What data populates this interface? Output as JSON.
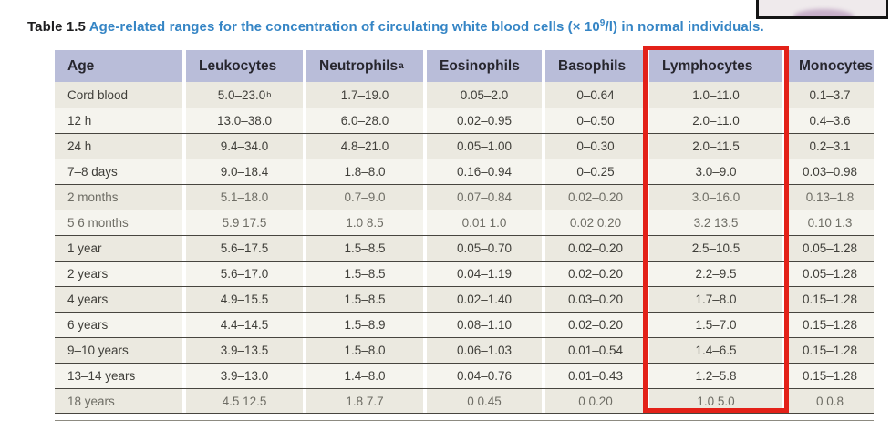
{
  "title": {
    "label": "Table 1.5",
    "text_pre": "Age-related ranges for the concentration of circulating white blood cells (× 10",
    "sup": "9",
    "text_post": "/l) in normal individuals."
  },
  "colors": {
    "header_bg": "#b9bdd9",
    "row_dark": "#ebe9e0",
    "row_light": "#f5f4ee",
    "title_blue": "#3585c5",
    "highlight_red": "#e32119"
  },
  "highlight": {
    "target_column": "Lymphocytes"
  },
  "partial_image_box": {
    "description": "black-bordered image thumbnail cut off at top edge"
  },
  "table": {
    "columns": [
      {
        "label": "Age",
        "sup": ""
      },
      {
        "label": "Leukocytes",
        "sup": ""
      },
      {
        "label": "Neutrophils",
        "sup": "a"
      },
      {
        "label": "Eosinophils",
        "sup": ""
      },
      {
        "label": "Basophils",
        "sup": ""
      },
      {
        "label": "Lymphocytes",
        "sup": ""
      },
      {
        "label": "Monocytes",
        "sup": ""
      }
    ],
    "rows": [
      {
        "age": "Cord blood",
        "values": [
          "5.0–23.0",
          "1.7–19.0",
          "0.05–2.0",
          "0–0.64",
          "1.0–11.0",
          "0.1–3.7"
        ],
        "value_sup": {
          "0": "b"
        }
      },
      {
        "age": "12 h",
        "values": [
          "13.0–38.0",
          "6.0–28.0",
          "0.02–0.95",
          "0–0.50",
          "2.0–11.0",
          "0.4–3.6"
        ]
      },
      {
        "age": "24 h",
        "values": [
          "9.4–34.0",
          "4.8–21.0",
          "0.05–1.00",
          "0–0.30",
          "2.0–11.5",
          "0.2–3.1"
        ]
      },
      {
        "age": "7–8 days",
        "values": [
          "9.0–18.4",
          "1.8–8.0",
          "0.16–0.94",
          "0–0.25",
          "3.0–9.0",
          "0.03–0.98"
        ]
      },
      {
        "age": "2 months",
        "values": [
          "5.1–18.0",
          "0.7–9.0",
          "0.07–0.84",
          "0.02–0.20",
          "3.0–16.0",
          "0.13–1.8"
        ],
        "faded": true
      },
      {
        "age": "5 6 months",
        "values": [
          "5.9 17.5",
          "1.0 8.5",
          "0.01 1.0",
          "0.02 0.20",
          "3.2 13.5",
          "0.10 1.3"
        ],
        "faded": true
      },
      {
        "age": "1 year",
        "values": [
          "5.6–17.5",
          "1.5–8.5",
          "0.05–0.70",
          "0.02–0.20",
          "2.5–10.5",
          "0.05–1.28"
        ]
      },
      {
        "age": "2 years",
        "values": [
          "5.6–17.0",
          "1.5–8.5",
          "0.04–1.19",
          "0.02–0.20",
          "2.2–9.5",
          "0.05–1.28"
        ]
      },
      {
        "age": "4 years",
        "values": [
          "4.9–15.5",
          "1.5–8.5",
          "0.02–1.40",
          "0.03–0.20",
          "1.7–8.0",
          "0.15–1.28"
        ]
      },
      {
        "age": "6 years",
        "values": [
          "4.4–14.5",
          "1.5–8.9",
          "0.08–1.10",
          "0.02–0.20",
          "1.5–7.0",
          "0.15–1.28"
        ]
      },
      {
        "age": "9–10 years",
        "values": [
          "3.9–13.5",
          "1.5–8.0",
          "0.06–1.03",
          "0.01–0.54",
          "1.4–6.5",
          "0.15–1.28"
        ]
      },
      {
        "age": "13–14 years",
        "values": [
          "3.9–13.0",
          "1.4–8.0",
          "0.04–0.76",
          "0.01–0.43",
          "1.2–5.8",
          "0.15–1.28"
        ]
      },
      {
        "age": "18 years",
        "values": [
          "4.5 12.5",
          "1.8 7.7",
          "0 0.45",
          "0 0.20",
          "1.0 5.0",
          "0 0.8"
        ],
        "faded": true
      }
    ]
  }
}
